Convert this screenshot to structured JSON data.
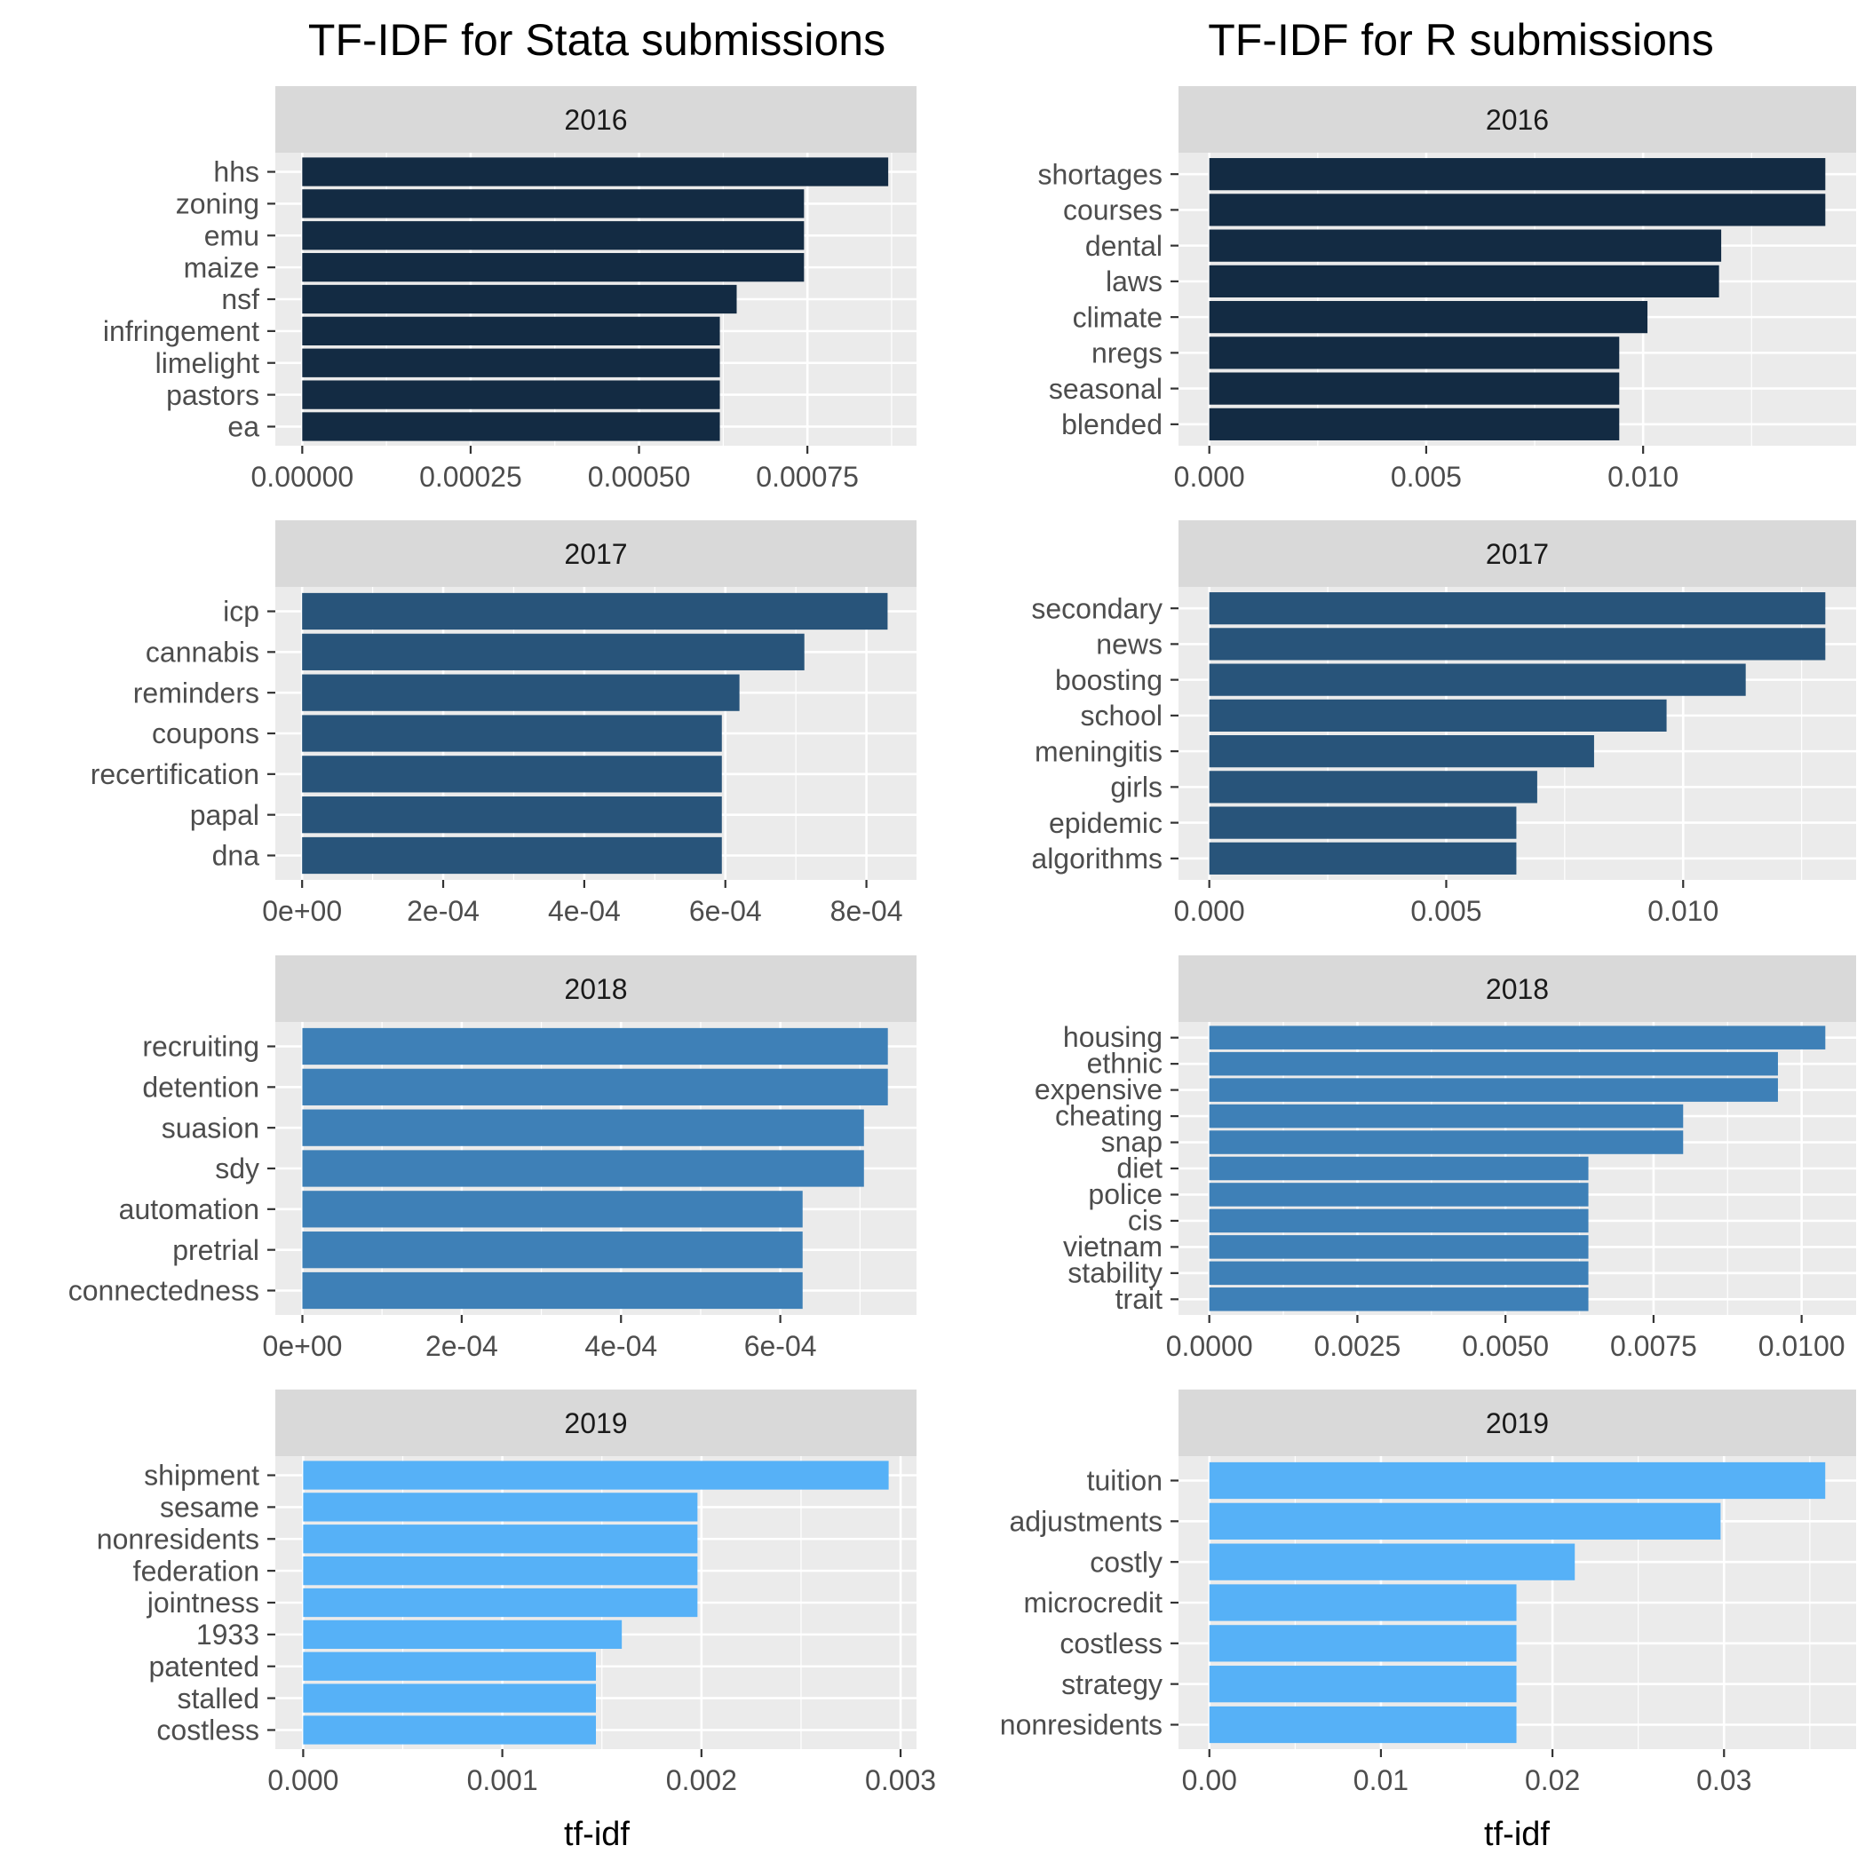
{
  "titles": {
    "left": "TF-IDF for Stata submissions",
    "right": "TF-IDF for R submissions"
  },
  "axis_titles": {
    "left_x": "tf-idf",
    "right_x": "tf-idf"
  },
  "colors": {
    "panel_background": "#ebebeb",
    "strip_background": "#d9d9d9",
    "grid": "#ffffff",
    "tick_text": "#4d4d4d",
    "2016": "#132b43",
    "2017": "#28547a",
    "2018": "#3e80b7",
    "2019": "#56b1f7"
  },
  "chart_data": [
    {
      "type": "bar",
      "orientation": "horizontal",
      "column": "left",
      "row": 0,
      "facet": "2016",
      "color_key": "2016",
      "categories": [
        "hhs",
        "zoning",
        "emu",
        "maize",
        "nsf",
        "infringement",
        "limelight",
        "pastors",
        "ea"
      ],
      "values": [
        0.00087,
        0.000745,
        0.000745,
        0.000745,
        0.000645,
        0.00062,
        0.00062,
        0.00062,
        0.00062
      ],
      "xlim": [
        -4e-05,
        0.000912
      ],
      "ticks": [
        0,
        0.00025,
        0.0005,
        0.00075
      ],
      "tick_labels": [
        "0.00000",
        "0.00025",
        "0.00050",
        "0.00075"
      ],
      "xlabel": "",
      "grid": true
    },
    {
      "type": "bar",
      "orientation": "horizontal",
      "column": "left",
      "row": 1,
      "facet": "2017",
      "color_key": "2017",
      "categories": [
        "icp",
        "cannabis",
        "reminders",
        "coupons",
        "recertification",
        "papal",
        "dna"
      ],
      "values": [
        0.00083,
        0.000712,
        0.00062,
        0.000595,
        0.000595,
        0.000595,
        0.000595
      ],
      "xlim": [
        -3.8e-05,
        0.000871
      ],
      "ticks": [
        0,
        0.0002,
        0.0004,
        0.0006,
        0.0008
      ],
      "tick_labels": [
        "0e+00",
        "2e-04",
        "4e-04",
        "6e-04",
        "8e-04"
      ],
      "xlabel": "",
      "grid": true
    },
    {
      "type": "bar",
      "orientation": "horizontal",
      "column": "left",
      "row": 2,
      "facet": "2018",
      "color_key": "2018",
      "categories": [
        "recruiting",
        "detention",
        "suasion",
        "sdy",
        "automation",
        "pretrial",
        "connectedness"
      ],
      "values": [
        0.000735,
        0.000735,
        0.000705,
        0.000705,
        0.000628,
        0.000628,
        0.000628
      ],
      "xlim": [
        -3.4e-05,
        0.000771
      ],
      "ticks": [
        0,
        0.0002,
        0.0004,
        0.0006
      ],
      "tick_labels": [
        "0e+00",
        "2e-04",
        "4e-04",
        "6e-04"
      ],
      "xlabel": "",
      "grid": true
    },
    {
      "type": "bar",
      "orientation": "horizontal",
      "column": "left",
      "row": 3,
      "facet": "2019",
      "color_key": "2019",
      "categories": [
        "shipment",
        "sesame",
        "nonresidents",
        "federation",
        "jointness",
        "1933",
        "patented",
        "stalled",
        "costless"
      ],
      "values": [
        0.00294,
        0.00198,
        0.00198,
        0.00198,
        0.00198,
        0.0016,
        0.00147,
        0.00147,
        0.00147
      ],
      "xlim": [
        -0.00014,
        0.00308
      ],
      "ticks": [
        0,
        0.001,
        0.002,
        0.003
      ],
      "tick_labels": [
        "0.000",
        "0.001",
        "0.002",
        "0.003"
      ],
      "xlabel": "tf-idf",
      "grid": true
    },
    {
      "type": "bar",
      "orientation": "horizontal",
      "column": "right",
      "row": 0,
      "facet": "2016",
      "color_key": "2016",
      "categories": [
        "shortages",
        "courses",
        "dental",
        "laws",
        "climate",
        "nregs",
        "seasonal",
        "blended"
      ],
      "values": [
        0.0142,
        0.0142,
        0.0118,
        0.01175,
        0.0101,
        0.00945,
        0.00945,
        0.00945
      ],
      "xlim": [
        -0.00071,
        0.01491
      ],
      "ticks": [
        0,
        0.005,
        0.01
      ],
      "tick_labels": [
        "0.000",
        "0.005",
        "0.010"
      ],
      "xlabel": "",
      "grid": true
    },
    {
      "type": "bar",
      "orientation": "horizontal",
      "column": "right",
      "row": 1,
      "facet": "2017",
      "color_key": "2017",
      "categories": [
        "secondary",
        "news",
        "boosting",
        "school",
        "meningitis",
        "girls",
        "epidemic",
        "algorithms"
      ],
      "values": [
        0.013,
        0.013,
        0.01132,
        0.00965,
        0.00812,
        0.00692,
        0.00648,
        0.00648
      ],
      "xlim": [
        -0.00065,
        0.01365
      ],
      "ticks": [
        0,
        0.005,
        0.01
      ],
      "tick_labels": [
        "0.000",
        "0.005",
        "0.010"
      ],
      "xlabel": "",
      "grid": true
    },
    {
      "type": "bar",
      "orientation": "horizontal",
      "column": "right",
      "row": 2,
      "facet": "2018",
      "color_key": "2018",
      "categories": [
        "housing",
        "ethnic",
        "expensive",
        "cheating",
        "snap",
        "diet",
        "police",
        "cis",
        "vietnam",
        "stability",
        "trait"
      ],
      "values": [
        0.0104,
        0.0096,
        0.0096,
        0.008,
        0.008,
        0.0064,
        0.0064,
        0.0064,
        0.0064,
        0.0064,
        0.0064
      ],
      "xlim": [
        -0.00052,
        0.01092
      ],
      "ticks": [
        0,
        0.0025,
        0.005,
        0.0075,
        0.01
      ],
      "tick_labels": [
        "0.0000",
        "0.0025",
        "0.0050",
        "0.0075",
        "0.0100"
      ],
      "xlabel": "",
      "grid": true
    },
    {
      "type": "bar",
      "orientation": "horizontal",
      "column": "right",
      "row": 3,
      "facet": "2019",
      "color_key": "2019",
      "categories": [
        "tuition",
        "adjustments",
        "costly",
        "microcredit",
        "costless",
        "strategy",
        "nonresidents"
      ],
      "values": [
        0.0359,
        0.0298,
        0.0213,
        0.0179,
        0.0179,
        0.0179,
        0.0179
      ],
      "xlim": [
        -0.0018,
        0.0377
      ],
      "ticks": [
        0,
        0.01,
        0.02,
        0.03
      ],
      "tick_labels": [
        "0.00",
        "0.01",
        "0.02",
        "0.03"
      ],
      "xlabel": "tf-idf",
      "grid": true
    }
  ]
}
